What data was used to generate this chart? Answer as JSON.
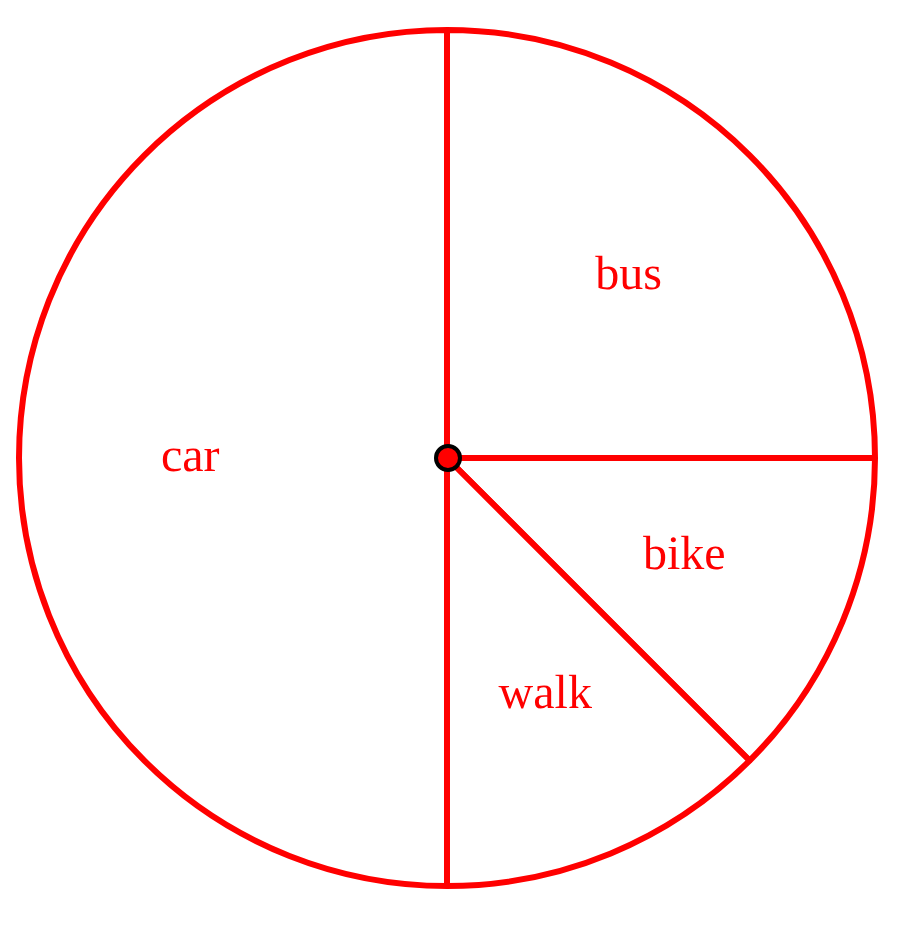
{
  "chart_data": {
    "type": "pie",
    "categories": [
      "bus",
      "bike",
      "walk",
      "car"
    ],
    "values": [
      25,
      12.5,
      12.5,
      50
    ],
    "colors": [
      "#ffffff",
      "#ffffff",
      "#ffffff",
      "#ffffff"
    ],
    "legend": false
  }
}
